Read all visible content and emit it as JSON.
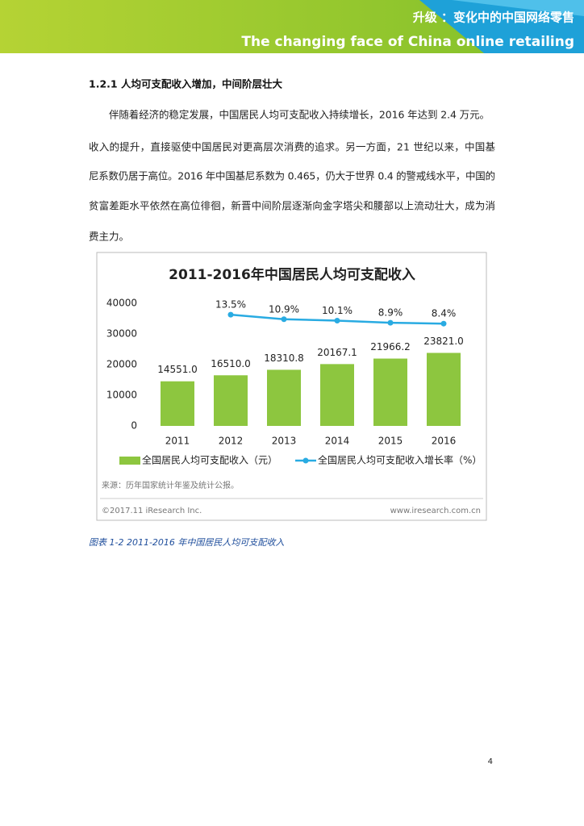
{
  "header": {
    "title": "升级 ：变化中的中国网络零售",
    "subtitle": "The changing face of China online retailing"
  },
  "section": {
    "heading": "1.2.1 人均可支配收入增加，中间阶层壮大"
  },
  "paragraph": {
    "lines": [
      "伴随着经济的稳定发展，中国居民人均可支配收入持续增长，2016 年达到 2.4 万元。",
      "收入的提升，直接驱使中国居民对更高层次消费的追求。另一方面，21 世纪以来，中国基",
      "尼系数仍居于高位。2016 年中国基尼系数为 0.465，仍大于世界 0.4 的警戒线水平，中国的",
      "贫富差距水平依然在高位徘徊，新晋中间阶层逐渐向金字塔尖和腰部以上流动壮大，成为消",
      "费主力。"
    ]
  },
  "chart_data": {
    "type": "bar_line",
    "title": "2011-2016年中国居民人均可支配收入",
    "categories": [
      "2011",
      "2012",
      "2013",
      "2014",
      "2015",
      "2016"
    ],
    "series": [
      {
        "name": "全国居民人均可支配收入（元）",
        "type": "bar",
        "color": "#8dc63f",
        "values": [
          14551.0,
          16510.0,
          18310.8,
          20167.1,
          21966.2,
          23821.0
        ],
        "value_labels": [
          "14551.0",
          "16510.0",
          "18310.8",
          "20167.1",
          "21966.2",
          "23821.0"
        ]
      },
      {
        "name": "全国居民人均可支配收入增长率（%）",
        "type": "line",
        "color": "#29abe2",
        "axis": "y2",
        "values": [
          null,
          13.5,
          10.9,
          10.1,
          8.9,
          8.4
        ],
        "value_labels": [
          null,
          "13.5%",
          "10.9%",
          "10.1%",
          "8.9%",
          "8.4%"
        ]
      }
    ],
    "ylim": [
      0,
      40000
    ],
    "yticks": [
      0,
      10000,
      20000,
      30000,
      40000
    ],
    "y2lim": [
      -50,
      20
    ],
    "grid": false,
    "source": "来源：历年国家统计年鉴及统计公报。",
    "copyright": "©2017.11 iResearch Inc.",
    "website": "www.iresearch.com.cn"
  },
  "caption": "图表 1-2   2011-2016 年中国居民人均可支配收入",
  "page_number": "4"
}
